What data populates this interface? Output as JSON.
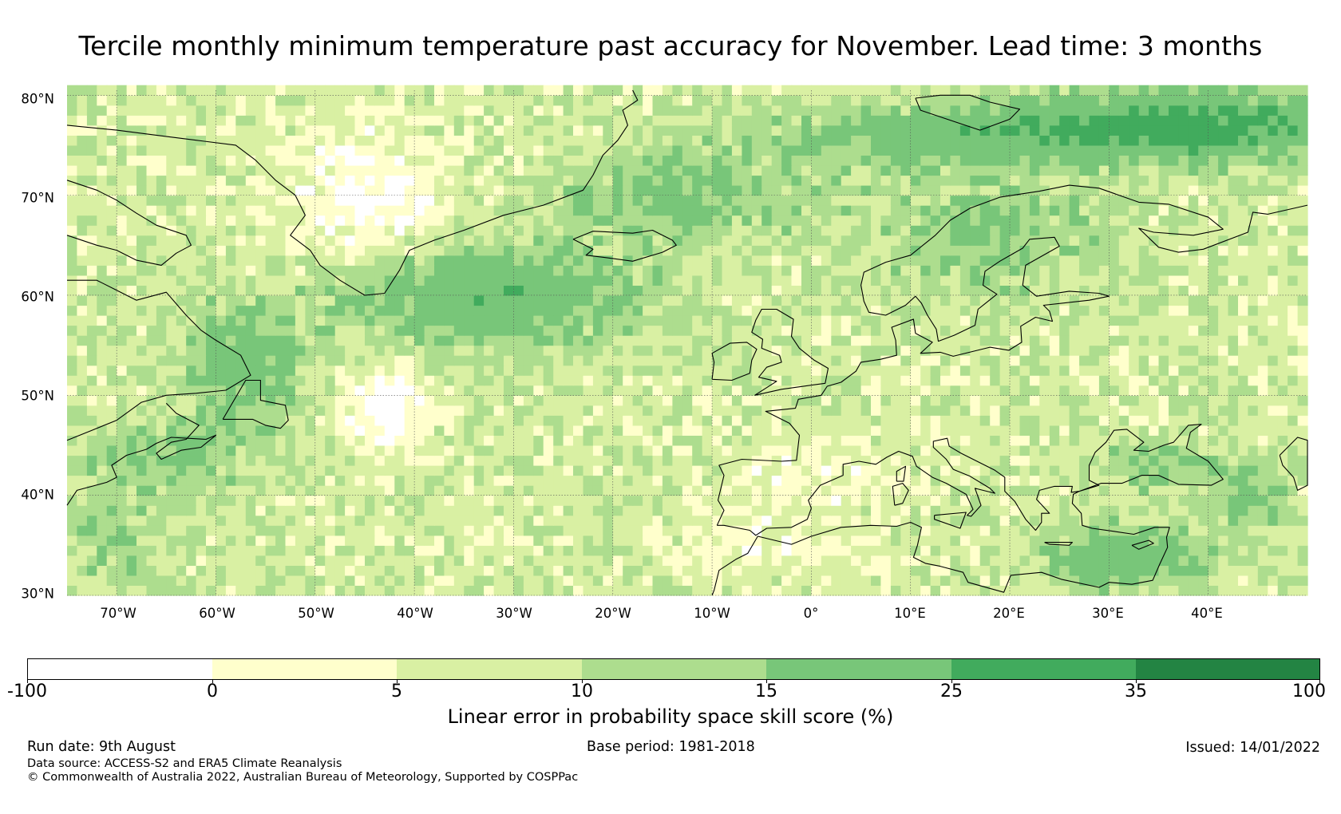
{
  "title": "Tercile monthly minimum temperature past accuracy for November. Lead time: 3 months",
  "map": {
    "lat_range": [
      30,
      80.5
    ],
    "lon_range": [
      -75,
      50
    ],
    "lat_ticks": [
      "80°N",
      "70°N",
      "60°N",
      "50°N",
      "40°N",
      "30°N"
    ],
    "lon_ticks": [
      "70°W",
      "60°W",
      "50°W",
      "40°W",
      "30°W",
      "20°W",
      "10°W",
      "0°",
      "10°E",
      "20°E",
      "30°E",
      "40°E"
    ],
    "gridlines": true,
    "coastline_color": "#000000"
  },
  "colorbar": {
    "caption": "Linear error in probability space skill score (%)",
    "tick_labels": [
      "-100",
      "0",
      "5",
      "10",
      "15",
      "25",
      "35",
      "100"
    ],
    "bins": [
      {
        "from": "-100",
        "to": "0",
        "color": "#ffffff"
      },
      {
        "from": "0",
        "to": "5",
        "color": "#ffffcc"
      },
      {
        "from": "5",
        "to": "10",
        "color": "#d9f0a3"
      },
      {
        "from": "10",
        "to": "15",
        "color": "#addd8e"
      },
      {
        "from": "15",
        "to": "25",
        "color": "#78c679"
      },
      {
        "from": "25",
        "to": "35",
        "color": "#41ab5d"
      },
      {
        "from": "35",
        "to": "100",
        "color": "#238443"
      }
    ]
  },
  "footer": {
    "run_date": "Run date: 9th August",
    "base_period": "Base period: 1981-2018",
    "issued": "Issued: 14/01/2022",
    "data_source": "Data source: ACCESS-S2 and ERA5 Climate Reanalysis",
    "copyright": "© Commonwealth of Australia 2022, Australian Bureau of Meteorology, Supported by COSPPac"
  }
}
